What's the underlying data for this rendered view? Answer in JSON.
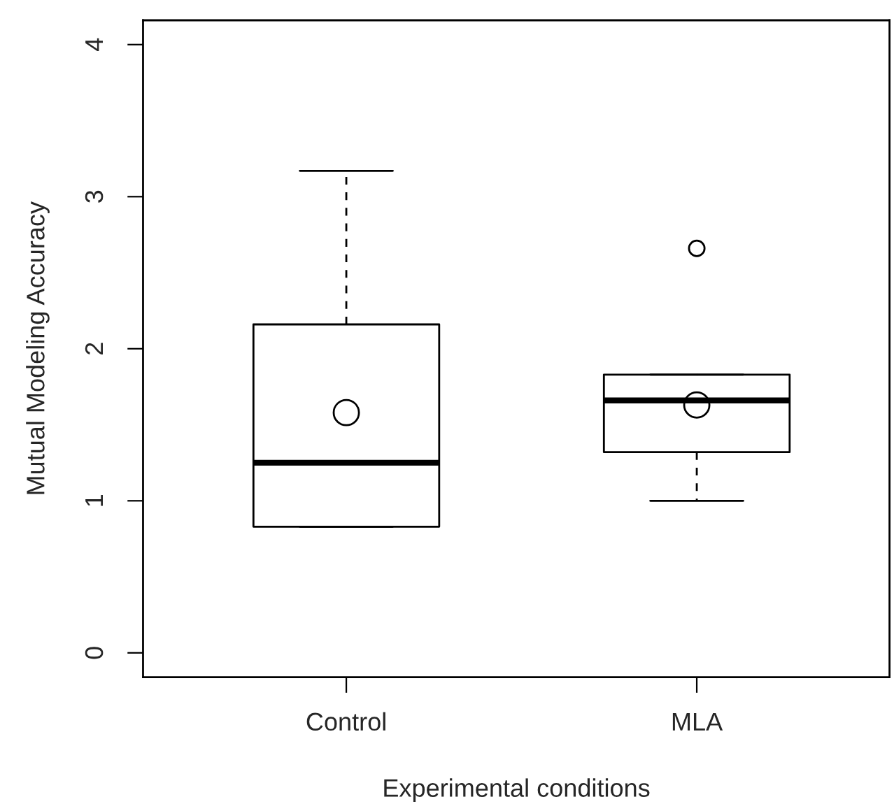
{
  "chart_data": {
    "type": "box",
    "xlabel": "Experimental conditions",
    "ylabel": "Mutual Modeling Accuracy",
    "categories": [
      "Control",
      "MLA"
    ],
    "boxes": [
      {
        "low": 0.83,
        "q1": 0.83,
        "median": 1.25,
        "q3": 2.16,
        "high": 3.17,
        "mean": 1.58
      },
      {
        "low": 1.0,
        "q1": 1.32,
        "median": 1.66,
        "q3": 1.83,
        "high": 1.83,
        "mean": 1.63,
        "outliers": [
          2.66
        ]
      }
    ],
    "ylim": [
      -0.16,
      4.16
    ],
    "yticks": [
      0,
      1,
      2,
      3,
      4
    ],
    "grid": false,
    "legend": false
  }
}
